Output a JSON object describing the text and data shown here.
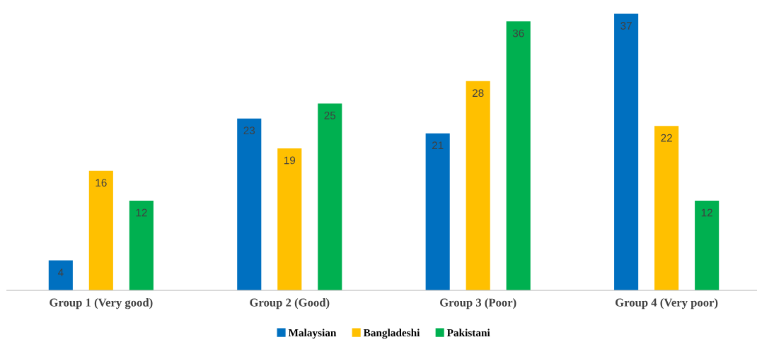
{
  "chart_data": {
    "type": "bar",
    "categories": [
      "Group 1 (Very good)",
      "Group 2 (Good)",
      "Group 3 (Poor)",
      "Group 4 (Very poor)"
    ],
    "series": [
      {
        "name": "Malaysian",
        "color": "#0070c0",
        "values": [
          4,
          23,
          21,
          37
        ]
      },
      {
        "name": "Bangladeshi",
        "color": "#ffc000",
        "values": [
          16,
          19,
          28,
          22
        ]
      },
      {
        "name": "Pakistani",
        "color": "#00b050",
        "values": [
          12,
          25,
          36,
          12
        ]
      }
    ],
    "data_labels": true,
    "legend": "bottom",
    "grid": false,
    "tick_labels": "x"
  }
}
